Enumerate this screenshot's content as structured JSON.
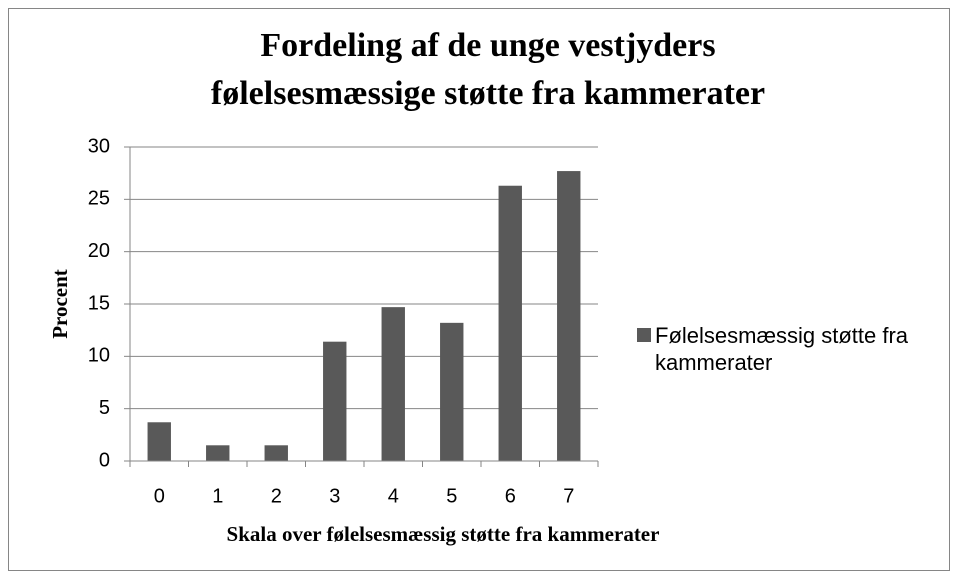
{
  "chart_data": {
    "type": "bar",
    "title": [
      "Fordeling af de unge vestjyders",
      "følelsesmæssige støtte fra kammerater"
    ],
    "x_label": "Skala over følelsesmæssig støtte fra kammerater",
    "y_label": "Procent",
    "categories": [
      "0",
      "1",
      "2",
      "3",
      "4",
      "5",
      "6",
      "7"
    ],
    "series": [
      {
        "name": "Følelsesmæssig støtte fra kammerater",
        "color": "#595959",
        "values": [
          3.7,
          1.5,
          1.5,
          11.4,
          14.7,
          13.2,
          26.3,
          27.7
        ]
      }
    ],
    "ylim": [
      0,
      30
    ],
    "yticks": [
      0,
      5,
      10,
      15,
      20,
      25,
      30
    ],
    "grid": true,
    "legend": "right"
  }
}
